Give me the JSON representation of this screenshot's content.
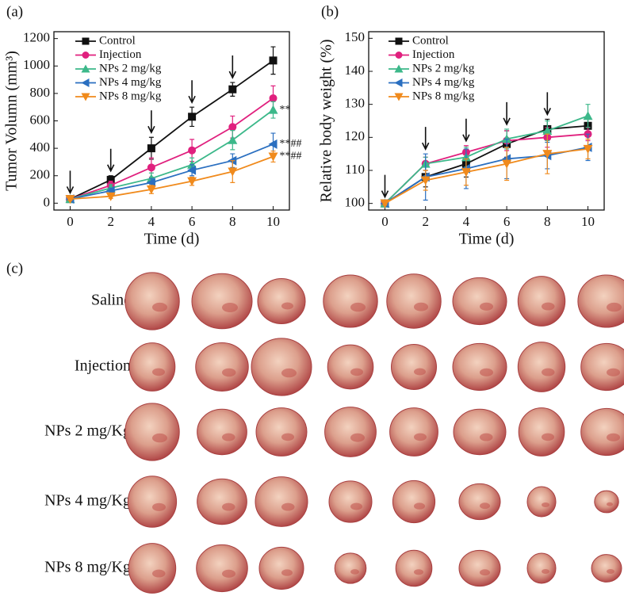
{
  "chart_data": [
    {
      "type": "line",
      "label": "(a)",
      "x_label": "Time (d)",
      "y_label": "Tumor Volumn (mm³)",
      "x": [
        0,
        2,
        4,
        6,
        8,
        10
      ],
      "xlim": [
        -0.8,
        10.8
      ],
      "xticks": [
        0,
        2,
        4,
        6,
        8,
        10
      ],
      "ylim": [
        -50,
        1250
      ],
      "yticks": [
        0,
        200,
        400,
        600,
        800,
        1000,
        1200
      ],
      "arrows": [
        0,
        2,
        4,
        6,
        8
      ],
      "series": [
        {
          "name": "Control",
          "color": "#111111",
          "marker": "square",
          "values": [
            30,
            170,
            400,
            630,
            830,
            1040
          ],
          "errors": [
            10,
            30,
            80,
            70,
            50,
            100
          ]
        },
        {
          "name": "Injection",
          "color": "#e0207e",
          "marker": "circle",
          "values": [
            30,
            130,
            260,
            385,
            555,
            765
          ],
          "errors": [
            10,
            30,
            70,
            80,
            80,
            90
          ]
        },
        {
          "name": "NPs 2 mg/kg",
          "color": "#3cb88a",
          "marker": "triangle-up",
          "values": [
            30,
            110,
            180,
            280,
            460,
            680
          ],
          "errors": [
            10,
            25,
            40,
            50,
            70,
            60
          ],
          "annotation": "**"
        },
        {
          "name": "NPs 4 mg/kg",
          "color": "#2a6fc0",
          "marker": "triangle-left",
          "values": [
            30,
            90,
            150,
            240,
            310,
            430
          ],
          "errors": [
            10,
            20,
            30,
            40,
            50,
            80
          ],
          "annotation": "**##"
        },
        {
          "name": "NPs 8 mg/kg",
          "color": "#f08a1c",
          "marker": "triangle-down",
          "values": [
            30,
            50,
            100,
            160,
            230,
            340
          ],
          "errors": [
            10,
            15,
            30,
            30,
            80,
            40
          ],
          "annotation": "**##"
        }
      ]
    },
    {
      "type": "line",
      "label": "(b)",
      "x_label": "Time (d)",
      "y_label": "Relative body weight (%)",
      "x": [
        0,
        2,
        4,
        6,
        8,
        10
      ],
      "xlim": [
        -0.8,
        10.8
      ],
      "xticks": [
        0,
        2,
        4,
        6,
        8,
        10
      ],
      "ylim": [
        98,
        152
      ],
      "yticks": [
        100,
        110,
        120,
        130,
        140,
        150
      ],
      "arrows": [
        0,
        2,
        4,
        6,
        8
      ],
      "series": [
        {
          "name": "Control",
          "color": "#111111",
          "marker": "square",
          "values": [
            100,
            108,
            112,
            118,
            122.5,
            123.5
          ],
          "errors": [
            0.5,
            3,
            4,
            4,
            3,
            3
          ]
        },
        {
          "name": "Injection",
          "color": "#e0207e",
          "marker": "circle",
          "values": [
            100,
            112,
            115.5,
            119,
            120,
            121
          ],
          "errors": [
            0.5,
            2,
            2,
            3,
            3,
            2
          ]
        },
        {
          "name": "NPs 2 mg/kg",
          "color": "#3cb88a",
          "marker": "triangle-up",
          "values": [
            100,
            112,
            114,
            119.5,
            122,
            126.5
          ],
          "errors": [
            0.5,
            2,
            3,
            3,
            3,
            3.5
          ]
        },
        {
          "name": "NPs 4 mg/kg",
          "color": "#2a6fc0",
          "marker": "triangle-left",
          "values": [
            100,
            108,
            110.5,
            113.5,
            114.5,
            117
          ],
          "errors": [
            0.5,
            7,
            6,
            6,
            4,
            4
          ]
        },
        {
          "name": "NPs 8 mg/kg",
          "color": "#f08a1c",
          "marker": "triangle-down",
          "values": [
            100,
            107,
            109.5,
            112,
            115,
            116.5
          ],
          "errors": [
            0.5,
            3,
            4,
            5,
            6,
            3
          ]
        }
      ]
    }
  ],
  "photo": {
    "label": "(c)",
    "rows": [
      "Saline",
      "Injection",
      "NPs 2 mg/Kg",
      "NPs 4 mg/Kg",
      "NPs 8 mg/Kg"
    ]
  }
}
